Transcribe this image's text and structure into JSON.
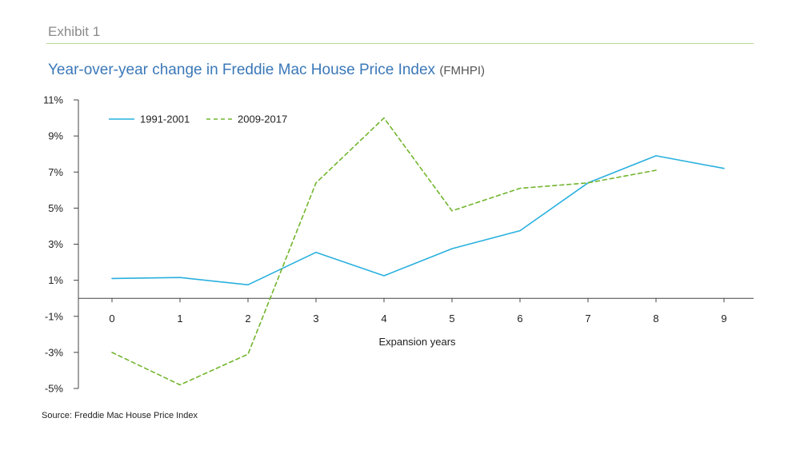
{
  "header": {
    "exhibit": "Exhibit 1",
    "title_main": "Year-over-year change in Freddie Mac House Price Index",
    "title_suffix": "(FMHPI)"
  },
  "source": "Source: Freddie Mac House Price Index",
  "colors": {
    "exhibit_rule": "#b6d98d",
    "title": "#3b78b8",
    "axis": "#444444"
  },
  "chart_data": {
    "type": "line",
    "title": "Year-over-year change in Freddie Mac House Price Index (FMHPI)",
    "xlabel": "Expansion years",
    "ylabel": "",
    "xlim": [
      0,
      9
    ],
    "ylim": [
      -5,
      11
    ],
    "x_ticks": [
      0,
      1,
      2,
      3,
      4,
      5,
      6,
      7,
      8,
      9
    ],
    "x_tick_labels": [
      "0",
      "1",
      "2",
      "3",
      "4",
      "5",
      "6",
      "7",
      "8",
      "9"
    ],
    "y_ticks": [
      11,
      9,
      7,
      5,
      3,
      1,
      -1,
      -3,
      -5
    ],
    "y_tick_labels": [
      "11%",
      "9%",
      "7%",
      "5%",
      "3%",
      "1%",
      "-1%",
      "-3%",
      "-5%"
    ],
    "grid": false,
    "legend_position": "top-left",
    "series": [
      {
        "name": "1991-2001",
        "style": "solid",
        "color": "#29b0de",
        "x": [
          0,
          1,
          2,
          3,
          4,
          5,
          6,
          7,
          8,
          9
        ],
        "values": [
          1.1,
          1.15,
          0.75,
          2.55,
          1.25,
          2.75,
          3.75,
          6.4,
          7.9,
          7.2
        ]
      },
      {
        "name": "2009-2017",
        "style": "dashed",
        "color": "#72b52e",
        "x": [
          0,
          1,
          2,
          3,
          4,
          5,
          6,
          7,
          8
        ],
        "values": [
          -3.0,
          -4.8,
          -3.1,
          6.4,
          10.0,
          4.85,
          6.1,
          6.4,
          7.1
        ]
      }
    ]
  }
}
